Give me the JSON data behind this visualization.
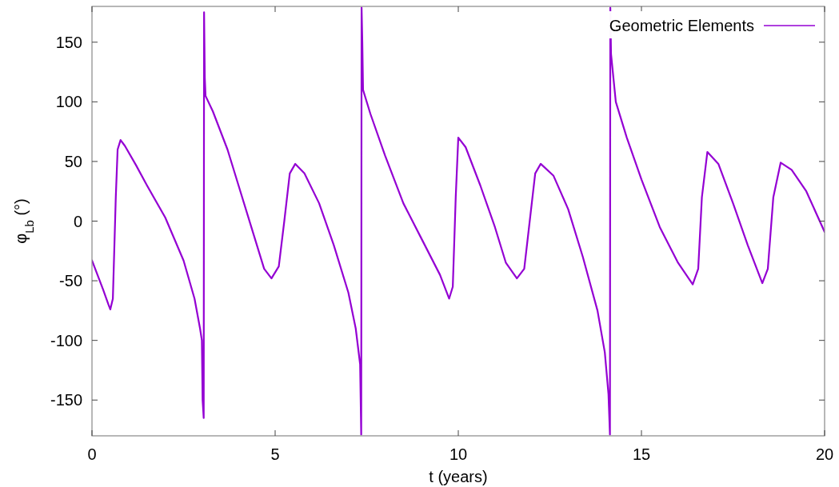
{
  "chart_data": {
    "type": "line",
    "xlabel": "t (years)",
    "ylabel": "φ$_{Lb}$ (°)",
    "xlim": [
      0,
      20
    ],
    "ylim": [
      -180,
      180
    ],
    "xticks": [
      0,
      5,
      10,
      15,
      20
    ],
    "yticks": [
      -150,
      -100,
      -50,
      0,
      50,
      100,
      150
    ],
    "grid": false,
    "legend": "top right",
    "marker": "none",
    "line_style": "solid",
    "series": [
      {
        "name": "Geometric Elements",
        "color": "#9400d3",
        "x": [
          0,
          0.3,
          0.45,
          0.5,
          0.57,
          0.65,
          0.7,
          0.78,
          0.9,
          1.2,
          1.5,
          2.0,
          2.5,
          2.8,
          2.95,
          3.0,
          3.02,
          3.05,
          3.06,
          3.08,
          3.1,
          3.3,
          3.7,
          4.0,
          4.4,
          4.7,
          4.9,
          5.1,
          5.25,
          5.4,
          5.55,
          5.8,
          6.2,
          6.6,
          7.0,
          7.2,
          7.32,
          7.35,
          7.36,
          7.38,
          7.4,
          7.6,
          8.0,
          8.5,
          9.0,
          9.5,
          9.75,
          9.85,
          9.93,
          10.0,
          10.2,
          10.6,
          11.0,
          11.3,
          11.6,
          11.8,
          11.95,
          12.1,
          12.25,
          12.6,
          13.0,
          13.4,
          13.8,
          14.0,
          14.1,
          14.14,
          14.15,
          14.17,
          14.3,
          14.6,
          15.0,
          15.5,
          16.0,
          16.4,
          16.55,
          16.65,
          16.8,
          17.1,
          17.5,
          17.9,
          18.3,
          18.45,
          18.6,
          18.8,
          19.1,
          19.5,
          20
        ],
        "values": [
          -33,
          -57,
          -70,
          -74,
          -65,
          20,
          60,
          68,
          63,
          47,
          30,
          3,
          -33,
          -65,
          -90,
          -100,
          -150,
          -165,
          175,
          120,
          105,
          92,
          60,
          30,
          -10,
          -40,
          -48,
          -38,
          0,
          40,
          48,
          40,
          15,
          -20,
          -60,
          -90,
          -120,
          -179,
          179,
          150,
          110,
          90,
          55,
          15,
          -15,
          -45,
          -65,
          -55,
          20,
          70,
          62,
          30,
          -5,
          -35,
          -48,
          -40,
          0,
          40,
          48,
          38,
          10,
          -30,
          -75,
          -110,
          -145,
          -179,
          179,
          140,
          100,
          70,
          35,
          -5,
          -35,
          -53,
          -40,
          20,
          58,
          48,
          15,
          -20,
          -52,
          -40,
          20,
          49,
          43,
          25,
          -9
        ]
      }
    ]
  }
}
